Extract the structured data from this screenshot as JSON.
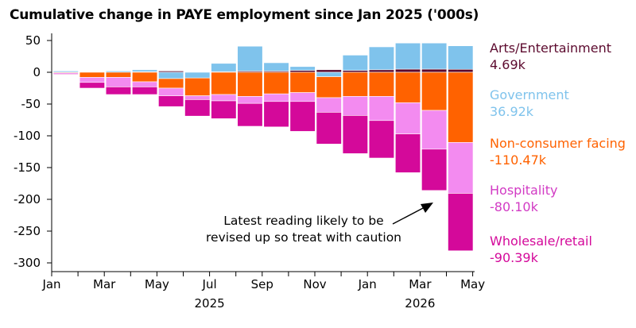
{
  "chart_data": {
    "type": "bar",
    "title": "Cumulative change in PAYE employment since Jan 2025 ('000s)",
    "xlabel": "",
    "ylabel": "",
    "ylim": [
      -300,
      50
    ],
    "yticks": [
      50,
      0,
      -50,
      -100,
      -150,
      -200,
      -250,
      -300
    ],
    "x_tick_labels": [
      "Jan",
      "Mar",
      "May",
      "Jul",
      "Sep",
      "Nov",
      "Jan",
      "Mar",
      "May"
    ],
    "x_year_labels": [
      "2025",
      "2026"
    ],
    "grid": false,
    "legend_placement": "right",
    "categories": [
      "Jan 2025",
      "Feb 2025",
      "Mar 2025",
      "Apr 2025",
      "May 2025",
      "Jun 2025",
      "Jul 2025",
      "Aug 2025",
      "Sep 2025",
      "Oct 2025",
      "Nov 2025",
      "Dec 2025",
      "Jan 2026",
      "Feb 2026",
      "Mar 2026",
      "Apr 2026"
    ],
    "series": [
      {
        "name": "Arts/Entertainment",
        "color": "#5c0a2e",
        "values": [
          0,
          0,
          0,
          1,
          2,
          0,
          1,
          2,
          2,
          3,
          4,
          3,
          4,
          5,
          5,
          4.69
        ]
      },
      {
        "name": "Government",
        "color": "#7fc3ec",
        "values": [
          2,
          0,
          2,
          3,
          -10,
          -9,
          13,
          39,
          13,
          6,
          -7,
          24,
          36,
          41,
          41,
          36.92
        ]
      },
      {
        "name": "Non-consumer facing",
        "color": "#ff6200",
        "values": [
          -1,
          -8,
          -8,
          -15,
          -15,
          -28,
          -35,
          -38,
          -34,
          -32,
          -33,
          -38,
          -38,
          -48,
          -60,
          -110.47
        ]
      },
      {
        "name": "Hospitality",
        "color": "#f38bf0",
        "values": [
          -2,
          -8,
          -15,
          -8,
          -12,
          -6,
          -10,
          -11,
          -12,
          -14,
          -23,
          -30,
          -38,
          -49,
          -61,
          -80.1
        ]
      },
      {
        "name": "Wholesale/retail",
        "color": "#d4099a",
        "values": [
          -1,
          -9,
          -12,
          -12,
          -17,
          -26,
          -28,
          -36,
          -40,
          -47,
          -50,
          -60,
          -59,
          -61,
          -65,
          -90.39
        ]
      }
    ],
    "legend": [
      {
        "name": "Arts/Entertainment",
        "value": "4.69k",
        "color": "#5c0a2e"
      },
      {
        "name": "Government",
        "value": "36.92k",
        "color": "#7fc3ec"
      },
      {
        "name": "Non-consumer facing",
        "value": "-110.47k",
        "color": "#ff6200"
      },
      {
        "name": "Hospitality",
        "value": "-80.10k",
        "color": "#d23bc4"
      },
      {
        "name": "Wholesale/retail",
        "value": "-90.39k",
        "color": "#d4099a"
      }
    ],
    "annotation": {
      "line1": "Latest reading likely to be",
      "line2": "revised up so treat with caution"
    }
  }
}
